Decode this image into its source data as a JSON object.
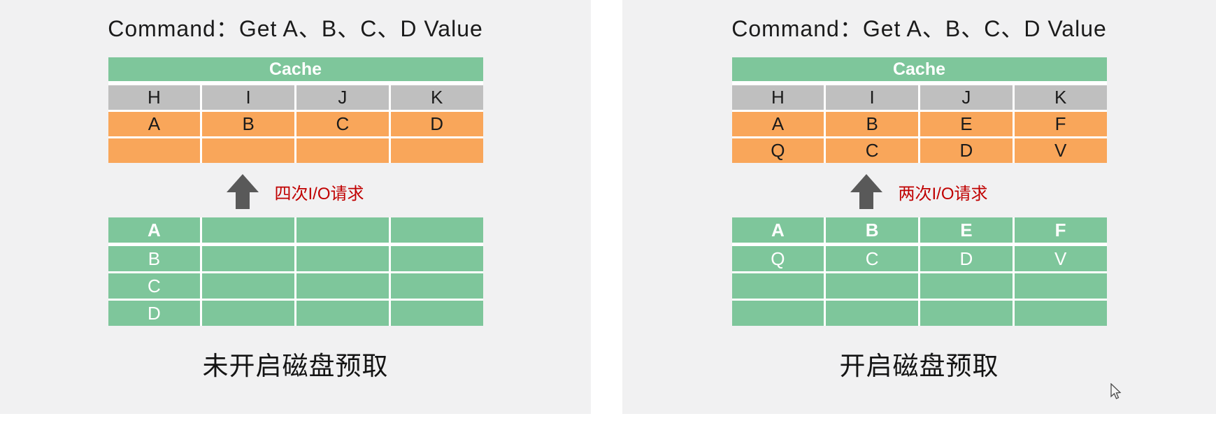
{
  "colors": {
    "panel_bg": "#F1F1F2",
    "green": "#7EC69B",
    "orange": "#F9A65A",
    "cell_gray": "#BFBFBF",
    "red": "#C00000",
    "arrow_gray": "#595959"
  },
  "panels": [
    {
      "title": "Command：Get A、B、C、D Value",
      "cache_table": {
        "header": "Cache",
        "rows": [
          {
            "cls": "gray",
            "cells": [
              "H",
              "I",
              "J",
              "K"
            ]
          },
          {
            "cls": "orange",
            "cells": [
              "A",
              "B",
              "C",
              "D"
            ]
          },
          {
            "cls": "orange",
            "cells": [
              "",
              "",
              "",
              ""
            ]
          }
        ]
      },
      "io_label": "四次I/O请求",
      "disk_table": {
        "rows": [
          {
            "cls": "green head",
            "cells": [
              "A",
              "",
              "",
              ""
            ]
          },
          {
            "cls": "green",
            "cells": [
              "B",
              "",
              "",
              ""
            ]
          },
          {
            "cls": "green",
            "cells": [
              "C",
              "",
              "",
              ""
            ]
          },
          {
            "cls": "green",
            "cells": [
              "D",
              "",
              "",
              ""
            ]
          }
        ]
      },
      "caption": "未开启磁盘预取"
    },
    {
      "title": "Command：Get A、B、C、D Value",
      "cache_table": {
        "header": "Cache",
        "rows": [
          {
            "cls": "gray",
            "cells": [
              "H",
              "I",
              "J",
              "K"
            ]
          },
          {
            "cls": "orange",
            "cells": [
              "A",
              "B",
              "E",
              "F"
            ]
          },
          {
            "cls": "orange",
            "cells": [
              "Q",
              "C",
              "D",
              "V"
            ]
          }
        ]
      },
      "io_label": "两次I/O请求",
      "disk_table": {
        "rows": [
          {
            "cls": "green head",
            "cells": [
              "A",
              "B",
              "E",
              "F"
            ]
          },
          {
            "cls": "green",
            "cells": [
              "Q",
              "C",
              "D",
              "V"
            ]
          },
          {
            "cls": "green",
            "cells": [
              "",
              "",
              "",
              ""
            ]
          },
          {
            "cls": "green",
            "cells": [
              "",
              "",
              "",
              ""
            ]
          }
        ]
      },
      "caption": "开启磁盘预取"
    }
  ]
}
